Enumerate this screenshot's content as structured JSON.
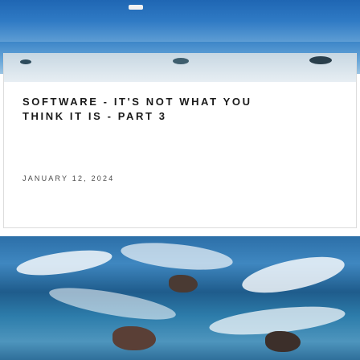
{
  "post": {
    "title": "SOFTWARE - IT'S NOT WHAT YOU THINK IT IS - PART 3",
    "date": "JANUARY 12, 2024"
  },
  "colors": {
    "title_text": "#1a1a1a",
    "date_text": "#4a4a4a",
    "card_border": "#dcdcdc",
    "sea_blue": "#2f7ac4"
  }
}
